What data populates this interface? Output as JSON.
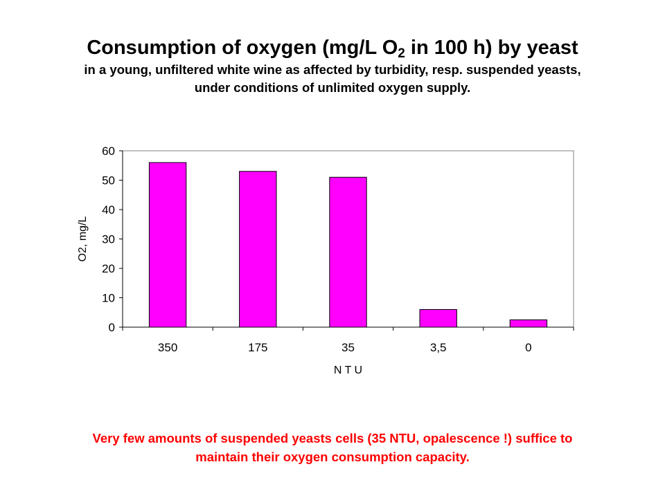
{
  "header": {
    "title_main": "Consumption of oxygen (mg/L O",
    "title_sub": "2",
    "title_tail": " in 100 h) by yeast",
    "subtitle_line1": "in a young, unfiltered white wine as affected by turbidity, resp. suspended yeasts,",
    "subtitle_line2": "under conditions of unlimited oxygen supply."
  },
  "footnote": {
    "line1": "Very few amounts of suspended yeasts cells (35 NTU, opalescence !) suffice to",
    "line2": "maintain their oxygen consumption capacity."
  },
  "colors": {
    "bar_fill": "#ff00ff",
    "bar_stroke": "#000000",
    "footnote": "#ff0000"
  },
  "chart_data": {
    "type": "bar",
    "categories": [
      "350",
      "175",
      "35",
      "3,5",
      "0"
    ],
    "values": [
      56,
      53,
      51,
      6,
      2.5
    ],
    "xlabel": "N T U",
    "ylabel": "O2, mg/L",
    "ylim": [
      0,
      60
    ],
    "yticks": [
      0,
      10,
      20,
      30,
      40,
      50,
      60
    ],
    "grid": false,
    "legend": "none"
  }
}
